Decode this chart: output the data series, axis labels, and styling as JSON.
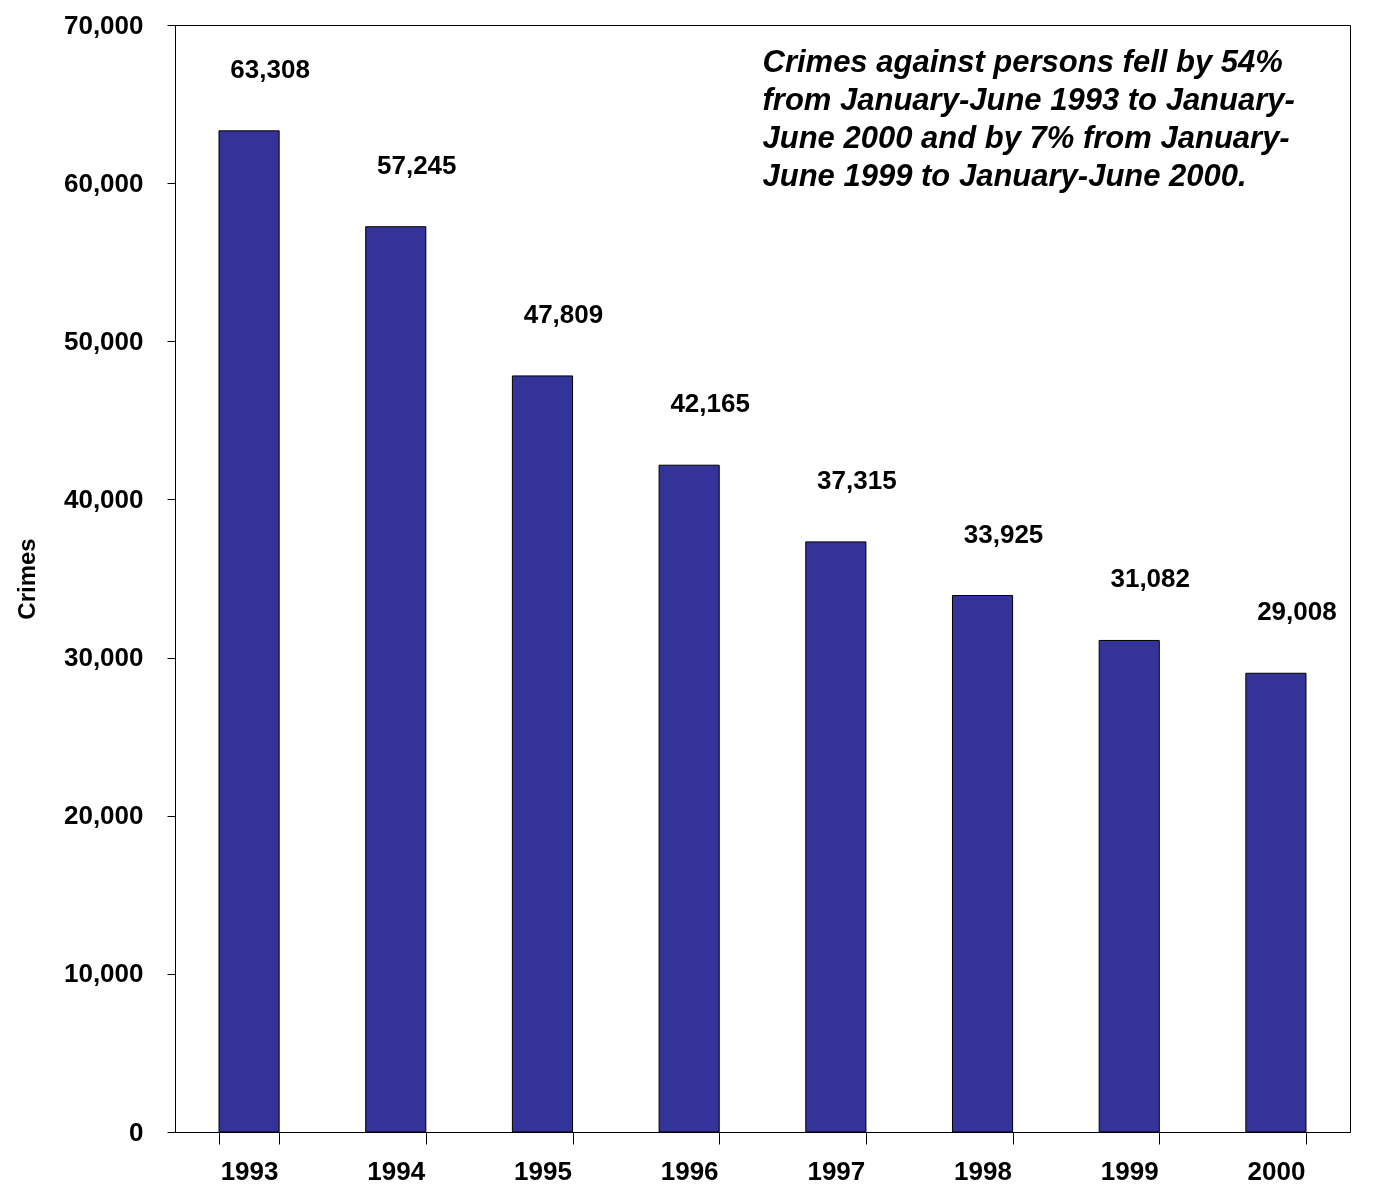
{
  "chart_data": {
    "type": "bar",
    "ylabel": "Crimes",
    "categories": [
      "1993",
      "1994",
      "1995",
      "1996",
      "1997",
      "1998",
      "1999",
      "2000"
    ],
    "values": [
      63308,
      57245,
      47809,
      42165,
      37315,
      33925,
      31082,
      29008
    ],
    "color": "#333399",
    "value_labels": [
      "63,308",
      "57,245",
      "47,809",
      "42,165",
      "37,315",
      "33,925",
      "31,082",
      "29,008"
    ],
    "ylim": [
      0,
      70000
    ],
    "yticks": [
      0,
      {
        "value": 10000,
        "label": "10,000"
      },
      {
        "value": 20000,
        "label": "20,000"
      },
      {
        "value": 30000,
        "label": "30,000"
      },
      {
        "value": 40000,
        "label": "40,000"
      },
      {
        "value": 50000,
        "label": "50,000"
      },
      {
        "value": 60000,
        "label": "60,000"
      },
      {
        "value": 70000,
        "label": "70,000"
      }
    ],
    "grid": false,
    "annotations": [
      "Crimes against persons fell by 54% from January-June 1993 to January-June 2000 and by 7% from January-June 1999 to January-June 2000."
    ]
  }
}
